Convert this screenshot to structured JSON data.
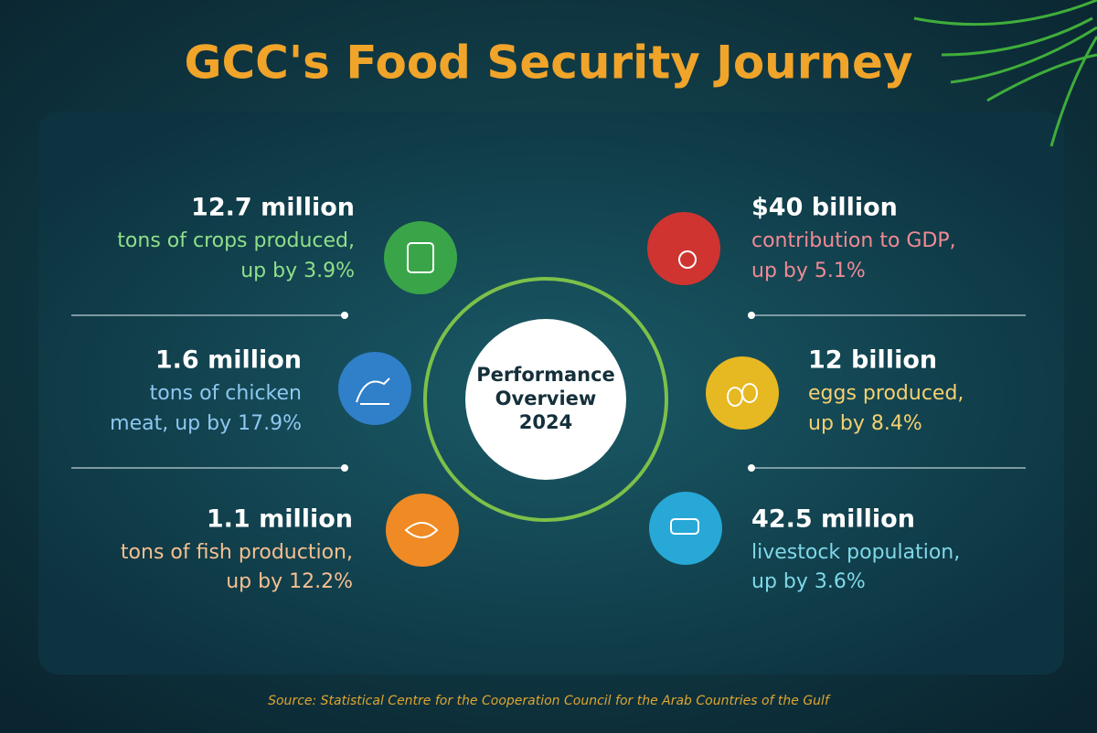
{
  "title": "GCC's Food Security Journey",
  "center": {
    "lines": [
      "Performance",
      "Overview",
      "2024"
    ]
  },
  "stats": [
    {
      "value": "12.7 million",
      "lines": [
        "tons of crops produced,",
        "up by 3.9%"
      ]
    },
    {
      "value": "1.6 million",
      "lines": [
        "tons of chicken",
        "meat, up by 17.9%"
      ]
    },
    {
      "value": "1.1 million",
      "lines": [
        "tons of fish production,",
        "up by 12.2%"
      ]
    },
    {
      "value": "$40 billion",
      "lines": [
        "contribution to GDP,",
        "up by 5.1%"
      ]
    },
    {
      "value": "12 billion",
      "lines": [
        "eggs produced,",
        "up by 8.4%"
      ]
    },
    {
      "value": "42.5 million",
      "lines": [
        "livestock population,",
        "up by 3.6%"
      ]
    }
  ],
  "source": "Source: Statistical Centre for the Cooperation Council for the Arab Countries of the Gulf"
}
